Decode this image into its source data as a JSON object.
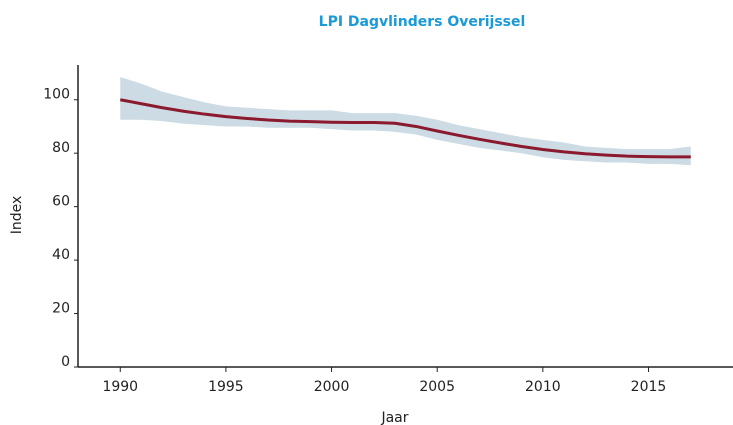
{
  "chart_data": {
    "type": "line",
    "title": "LPI Dagvlinders Overijssel",
    "x_label": "Jaar",
    "y_label": "Index",
    "x": [
      1990,
      1991,
      1992,
      1993,
      1994,
      1995,
      1996,
      1997,
      1998,
      1999,
      2000,
      2001,
      2002,
      2003,
      2004,
      2005,
      2006,
      2007,
      2008,
      2009,
      2010,
      2011,
      2012,
      2013,
      2014,
      2015,
      2016,
      2017
    ],
    "series": [
      {
        "color": "#8b1a2e",
        "values": [
          100,
          98.5,
          97,
          95.7,
          94.6,
          93.7,
          93,
          92.4,
          92,
          91.8,
          91.6,
          91.5,
          91.5,
          91.2,
          90,
          88.3,
          86.7,
          85.2,
          83.8,
          82.5,
          81.4,
          80.5,
          79.8,
          79.3,
          78.9,
          78.7,
          78.6,
          78.6
        ]
      }
    ],
    "band": {
      "color": "#ccdbe4",
      "upper": [
        108.5,
        106,
        103,
        101,
        99,
        97.5,
        97,
        96.5,
        96,
        96,
        96,
        95,
        95,
        95,
        94,
        92.5,
        90.5,
        89,
        87.5,
        86,
        85,
        84,
        82.5,
        82,
        81.5,
        81.5,
        81.5,
        82.5
      ],
      "lower": [
        92.5,
        92.5,
        92,
        91,
        90.5,
        90,
        90,
        89.5,
        89.5,
        89.5,
        89,
        88.5,
        88.5,
        88,
        87,
        85,
        83.5,
        82,
        81,
        80,
        78.5,
        77.5,
        77,
        76.5,
        76.5,
        76,
        76,
        75.5
      ]
    },
    "xlim": [
      1988,
      2019
    ],
    "xticks": [
      1990,
      1995,
      2000,
      2005,
      2010,
      2015
    ],
    "ylim": [
      0,
      113
    ],
    "yticks": [
      0,
      20,
      40,
      60,
      80,
      100
    ]
  }
}
